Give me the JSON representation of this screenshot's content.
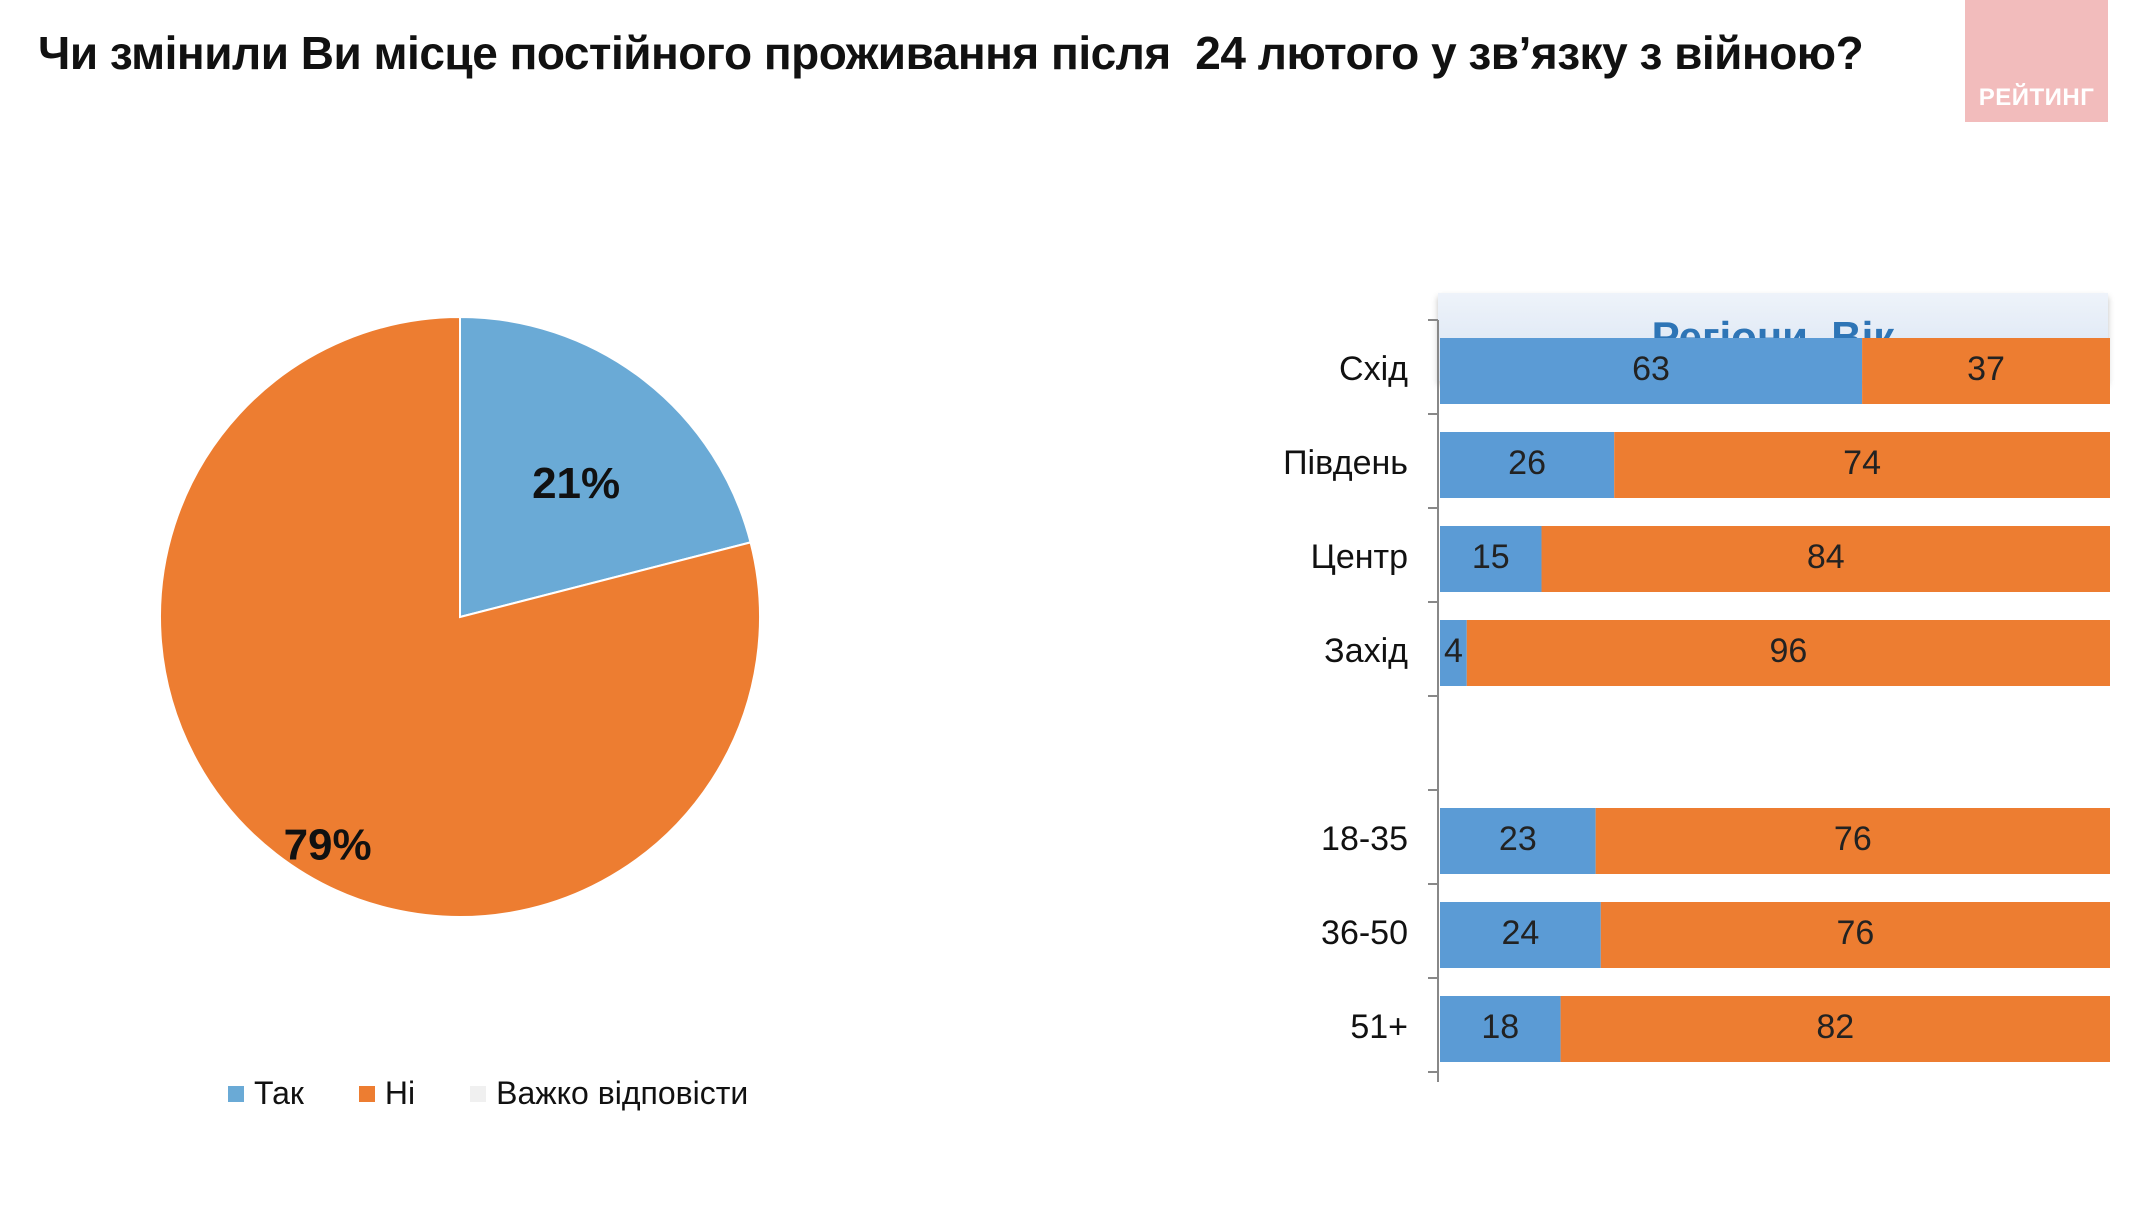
{
  "title": "Чи змінили Ви місце постійного проживання після  24 лютого у зв’язку з війною?",
  "logo_text": "РЕЙТИНГ",
  "panel_title": "Регіони. Вік",
  "colors": {
    "yes": "#6aaad6",
    "no": "#ed7d31",
    "hard": "#f0f0f0",
    "bar_yes": "#5b9bd5",
    "header_text": "#2e75b6",
    "logo_bg": "#f2bcbc"
  },
  "legend": [
    {
      "label": "Так",
      "color": "#6aaad6"
    },
    {
      "label": "Ні",
      "color": "#ed7d31"
    },
    {
      "label": "Важко відповісти",
      "color": "#f0f0f0"
    }
  ],
  "chart_data": [
    {
      "type": "pie",
      "labels": [
        "Так",
        "Ні",
        "Важко відповісти"
      ],
      "values": [
        21,
        79,
        0
      ],
      "data_labels": [
        "21%",
        "79%",
        ""
      ]
    },
    {
      "type": "bar",
      "orientation": "horizontal",
      "stacked": true,
      "categories": [
        "Схід",
        "Південь",
        "Центр",
        "Захід",
        "",
        "18-35",
        "36-50",
        "51+"
      ],
      "series": [
        {
          "name": "Так",
          "values": [
            63,
            26,
            15,
            4,
            null,
            23,
            24,
            18
          ]
        },
        {
          "name": "Ні",
          "values": [
            37,
            74,
            84,
            96,
            null,
            76,
            76,
            82
          ]
        }
      ],
      "xlim": [
        0,
        100
      ]
    }
  ]
}
